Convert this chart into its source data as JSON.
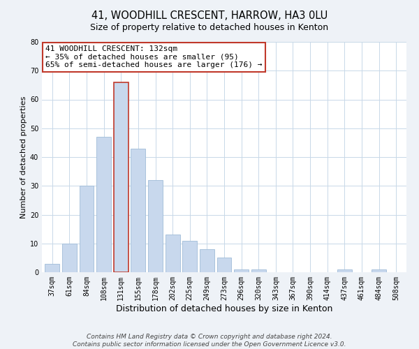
{
  "title": "41, WOODHILL CRESCENT, HARROW, HA3 0LU",
  "subtitle": "Size of property relative to detached houses in Kenton",
  "xlabel": "Distribution of detached houses by size in Kenton",
  "ylabel": "Number of detached properties",
  "categories": [
    "37sqm",
    "61sqm",
    "84sqm",
    "108sqm",
    "131sqm",
    "155sqm",
    "178sqm",
    "202sqm",
    "225sqm",
    "249sqm",
    "273sqm",
    "296sqm",
    "320sqm",
    "343sqm",
    "367sqm",
    "390sqm",
    "414sqm",
    "437sqm",
    "461sqm",
    "484sqm",
    "508sqm"
  ],
  "values": [
    3,
    10,
    30,
    47,
    66,
    43,
    32,
    13,
    11,
    8,
    5,
    1,
    1,
    0,
    0,
    0,
    0,
    1,
    0,
    1,
    0
  ],
  "bar_color": "#c8d8ed",
  "bar_edge_color": "#a0bcd8",
  "highlight_bar_index": 4,
  "highlight_bar_edge_color": "#c0392b",
  "annotation_box_text": "41 WOODHILL CRESCENT: 132sqm\n← 35% of detached houses are smaller (95)\n65% of semi-detached houses are larger (176) →",
  "annotation_box_color": "#c0392b",
  "ylim": [
    0,
    80
  ],
  "yticks": [
    0,
    10,
    20,
    30,
    40,
    50,
    60,
    70,
    80
  ],
  "footer_line1": "Contains HM Land Registry data © Crown copyright and database right 2024.",
  "footer_line2": "Contains public sector information licensed under the Open Government Licence v3.0.",
  "background_color": "#eef2f7",
  "plot_bg_color": "#ffffff",
  "grid_color": "#c8d8e8",
  "title_fontsize": 10.5,
  "subtitle_fontsize": 9,
  "xlabel_fontsize": 9,
  "ylabel_fontsize": 8,
  "tick_fontsize": 7,
  "annotation_fontsize": 8,
  "footer_fontsize": 6.5
}
